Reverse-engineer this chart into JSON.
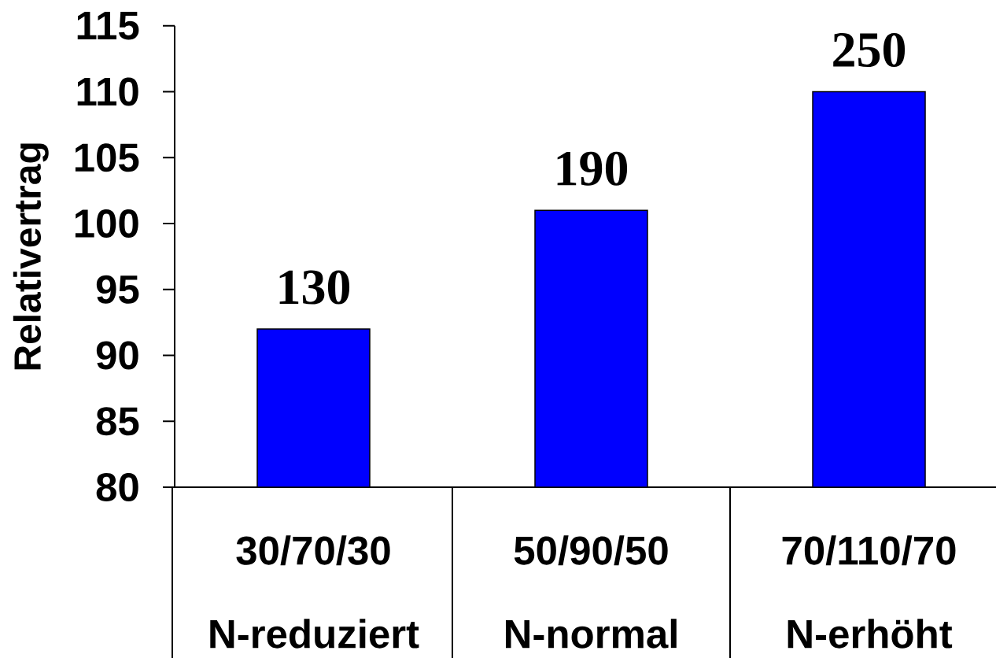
{
  "chart_data": {
    "type": "bar",
    "ylabel": "Relativertrag",
    "categories": [
      "30/70/30 N-reduziert",
      "50/90/50 N-normal",
      "70/110/70 N-erhöht"
    ],
    "values": [
      92,
      101,
      110
    ],
    "color": "#0000ff",
    "ylim": [
      80,
      115
    ],
    "yticks": [
      80,
      85,
      90,
      95,
      100,
      105,
      110,
      115
    ],
    "annotations": [
      {
        "text": "130",
        "x": "30/70/30 N-reduziert",
        "y": 92
      },
      {
        "text": "190",
        "x": "50/90/50 N-normal",
        "y": 101
      },
      {
        "text": "250",
        "x": "70/110/70 N-erhöht",
        "y": 110
      }
    ]
  }
}
